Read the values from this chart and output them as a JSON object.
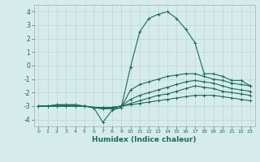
{
  "title": "",
  "xlabel": "Humidex (Indice chaleur)",
  "ylabel": "",
  "background_color": "#d6ecea",
  "grid_color": "#b8d8d5",
  "line_color": "#1a6b5e",
  "xlim": [
    -0.5,
    23.5
  ],
  "ylim": [
    -4.5,
    4.5
  ],
  "yticks": [
    -4,
    -3,
    -2,
    -1,
    0,
    1,
    2,
    3,
    4
  ],
  "xticks": [
    0,
    1,
    2,
    3,
    4,
    5,
    6,
    7,
    8,
    9,
    10,
    11,
    12,
    13,
    14,
    15,
    16,
    17,
    18,
    19,
    20,
    21,
    22,
    23
  ],
  "series": [
    {
      "x": [
        0,
        1,
        2,
        3,
        4,
        5,
        6,
        7,
        8,
        9,
        10,
        11,
        12,
        13,
        14,
        15,
        16,
        17,
        18,
        19,
        20,
        21,
        22,
        23
      ],
      "y": [
        -3.0,
        -3.0,
        -2.9,
        -2.9,
        -2.9,
        -3.0,
        -3.1,
        -4.2,
        -3.3,
        -3.1,
        -0.1,
        2.5,
        3.5,
        3.8,
        4.0,
        3.5,
        2.7,
        1.7,
        -0.6,
        -0.6,
        -0.8,
        -1.1,
        -1.1,
        -1.5
      ]
    },
    {
      "x": [
        0,
        1,
        2,
        3,
        4,
        5,
        6,
        7,
        8,
        9,
        10,
        11,
        12,
        13,
        14,
        15,
        16,
        17,
        18,
        19,
        20,
        21,
        22,
        23
      ],
      "y": [
        -3.0,
        -3.0,
        -2.9,
        -2.9,
        -2.9,
        -3.0,
        -3.1,
        -3.2,
        -3.2,
        -3.1,
        -1.8,
        -1.4,
        -1.2,
        -1.0,
        -0.8,
        -0.7,
        -0.6,
        -0.6,
        -0.8,
        -1.0,
        -1.1,
        -1.3,
        -1.4,
        -1.5
      ]
    },
    {
      "x": [
        0,
        1,
        2,
        3,
        4,
        5,
        6,
        7,
        8,
        9,
        10,
        11,
        12,
        13,
        14,
        15,
        16,
        17,
        18,
        19,
        20,
        21,
        22,
        23
      ],
      "y": [
        -3.0,
        -3.0,
        -3.0,
        -3.0,
        -3.0,
        -3.0,
        -3.1,
        -3.1,
        -3.1,
        -3.0,
        -2.5,
        -2.2,
        -2.0,
        -1.8,
        -1.6,
        -1.4,
        -1.2,
        -1.1,
        -1.2,
        -1.3,
        -1.5,
        -1.7,
        -1.8,
        -1.9
      ]
    },
    {
      "x": [
        0,
        1,
        2,
        3,
        4,
        5,
        6,
        7,
        8,
        9,
        10,
        11,
        12,
        13,
        14,
        15,
        16,
        17,
        18,
        19,
        20,
        21,
        22,
        23
      ],
      "y": [
        -3.0,
        -3.0,
        -3.0,
        -3.0,
        -3.0,
        -3.0,
        -3.1,
        -3.1,
        -3.1,
        -3.0,
        -2.8,
        -2.6,
        -2.4,
        -2.2,
        -2.1,
        -1.9,
        -1.7,
        -1.5,
        -1.6,
        -1.7,
        -1.9,
        -2.0,
        -2.1,
        -2.2
      ]
    },
    {
      "x": [
        0,
        1,
        2,
        3,
        4,
        5,
        6,
        7,
        8,
        9,
        10,
        11,
        12,
        13,
        14,
        15,
        16,
        17,
        18,
        19,
        20,
        21,
        22,
        23
      ],
      "y": [
        -3.0,
        -3.0,
        -3.0,
        -3.0,
        -3.0,
        -3.0,
        -3.1,
        -3.2,
        -3.1,
        -3.0,
        -2.9,
        -2.8,
        -2.7,
        -2.6,
        -2.5,
        -2.4,
        -2.3,
        -2.2,
        -2.2,
        -2.2,
        -2.3,
        -2.4,
        -2.5,
        -2.6
      ]
    }
  ]
}
